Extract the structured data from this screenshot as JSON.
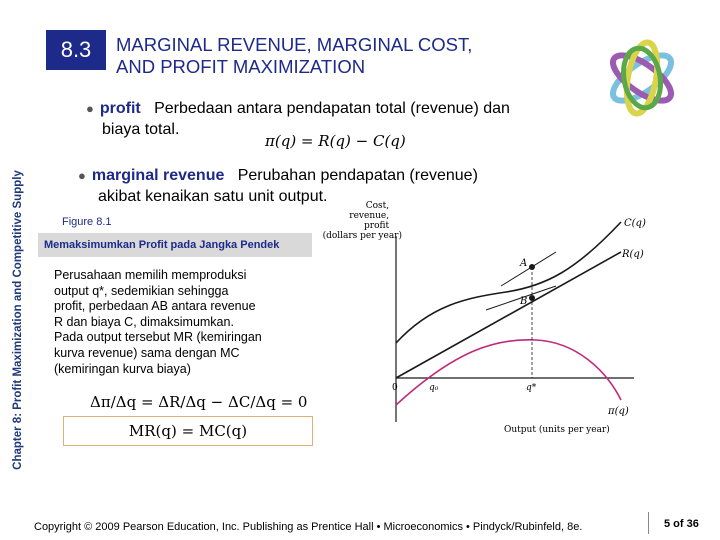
{
  "side_label": "Chapter 8:  Profit Maximization and Competitive Supply",
  "section_number": "8.3",
  "title_line1": "MARGINAL REVENUE, MARGINAL COST,",
  "title_line2": "AND PROFIT MAXIMIZATION",
  "bullet1": {
    "term": "profit",
    "text1": "Perbedaan antara pendapatan total (revenue) dan",
    "text2": "biaya total."
  },
  "formula_profit": "π(q) = R(q) − C(q)",
  "bullet2": {
    "term": "marginal revenue",
    "text1": "Perubahan pendapatan (revenue)",
    "text2": "akibat kenaikan satu unit output."
  },
  "figure_label": "Figure 8.1",
  "figure_title": "Memaksimumkan Profit pada Jangka Pendek",
  "description": [
    "Perusahaan memilih memproduksi",
    "output q*, sedemikian sehingga",
    "profit, perbedaan AB  antara revenue",
    "R dan biaya C, dimaksimumkan.",
    "Pada output tersebut MR (kemiringan",
    "kurva revenue) sama dengan MC",
    "(kemiringan kurva biaya)"
  ],
  "formula_delta": "Δπ/Δq = ΔR/Δq − ΔC/Δq = 0",
  "formula_mr": "MR(q) = MC(q)",
  "footer": "Copyright © 2009 Pearson Education, Inc. Publishing as Prentice Hall  •  Microeconomics  •  Pindyck/Rubinfeld, 8e.",
  "page": "5 of 36",
  "chart_data": {
    "type": "line",
    "ylabel": "Cost, revenue, profit (dollars per year)",
    "xlabel": "Output (units per year)",
    "origin_label": "0",
    "x_ticks": [
      "q₀",
      "q*"
    ],
    "series": [
      {
        "name": "C(q)",
        "shape": "cubic cost curve"
      },
      {
        "name": "R(q)",
        "shape": "linear revenue from origin"
      },
      {
        "name": "π(q)",
        "shape": "inverted U profit curve"
      }
    ],
    "points": [
      "A",
      "B"
    ],
    "colors": {
      "cost": "#1a1a1a",
      "revenue": "#1a1a1a",
      "profit": "#c0297a",
      "axis": "#1a1a1a"
    }
  }
}
